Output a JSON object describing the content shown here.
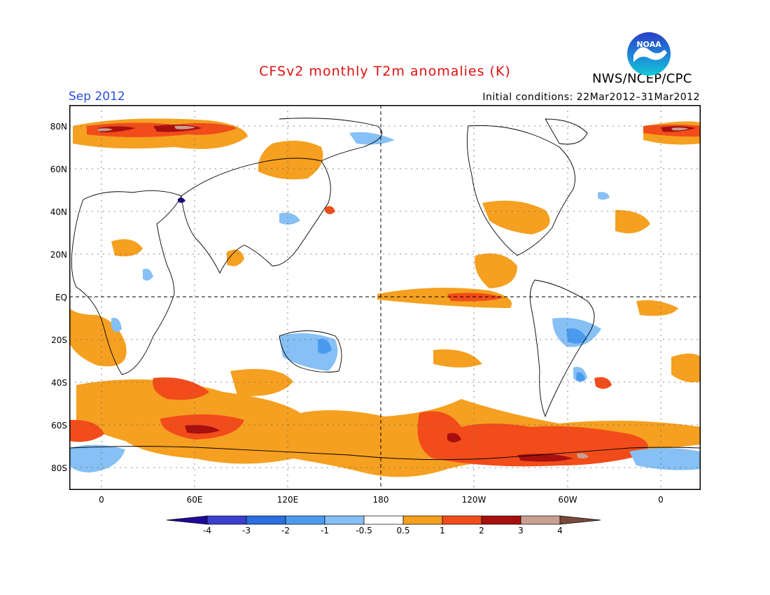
{
  "title": "CFSv2 monthly T2m anomalies (K)",
  "period": "Sep 2012",
  "initial_conditions": "Initial conditions: 22Mar2012–31Mar2012",
  "agency": "NWS/NCEP/CPC",
  "logo": {
    "text": "NOAA",
    "icon": "noaa-logo-icon"
  },
  "map": {
    "lat_labels": [
      "80N",
      "60N",
      "40N",
      "20N",
      "EQ",
      "20S",
      "40S",
      "60S",
      "80S"
    ],
    "lon_labels": [
      "0",
      "60E",
      "120E",
      "180",
      "120W",
      "60W",
      "0"
    ],
    "colors": {
      "ocean": "#ffffff",
      "coast": "#000000",
      "grid": "#666666"
    }
  },
  "legend": {
    "tick_labels": [
      "-4",
      "-3",
      "-2",
      "-1",
      "-0.5",
      "0.5",
      "1",
      "2",
      "3",
      "4"
    ],
    "colors": [
      "#1e0a9a",
      "#3b3fcf",
      "#2a6ee0",
      "#4a9bf0",
      "#86c0f5",
      "#ffffff",
      "#f5a020",
      "#f24c1a",
      "#a80f0f",
      "#c9a090",
      "#7a4a3a"
    ]
  }
}
